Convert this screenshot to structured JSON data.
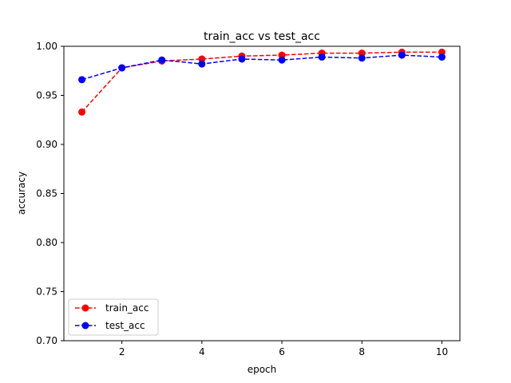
{
  "chart_data": {
    "type": "line",
    "title": "train_acc vs test_acc",
    "xlabel": "epoch",
    "ylabel": "accuracy",
    "xlim": [
      0.55,
      10.45
    ],
    "ylim": [
      0.7,
      1.0
    ],
    "x_ticks": [
      2,
      4,
      6,
      8,
      10
    ],
    "x_tick_labels": [
      "2",
      "4",
      "6",
      "8",
      "10"
    ],
    "y_ticks": [
      0.7,
      0.75,
      0.8,
      0.85,
      0.9,
      0.95,
      1.0
    ],
    "y_tick_labels": [
      "0.70",
      "0.75",
      "0.80",
      "0.85",
      "0.90",
      "0.95",
      "1.00"
    ],
    "grid": false,
    "legend_position": "lower-left",
    "x": [
      1,
      2,
      3,
      4,
      5,
      6,
      7,
      8,
      9,
      10
    ],
    "series": [
      {
        "name": "train_acc",
        "color": "#ff0000",
        "linestyle": "dashed",
        "marker": "circle",
        "values": [
          0.933,
          0.978,
          0.985,
          0.987,
          0.99,
          0.991,
          0.993,
          0.993,
          0.994,
          0.994
        ]
      },
      {
        "name": "test_acc",
        "color": "#0000ff",
        "linestyle": "dashed",
        "marker": "circle",
        "values": [
          0.966,
          0.978,
          0.986,
          0.982,
          0.987,
          0.986,
          0.989,
          0.988,
          0.991,
          0.989
        ]
      }
    ]
  }
}
